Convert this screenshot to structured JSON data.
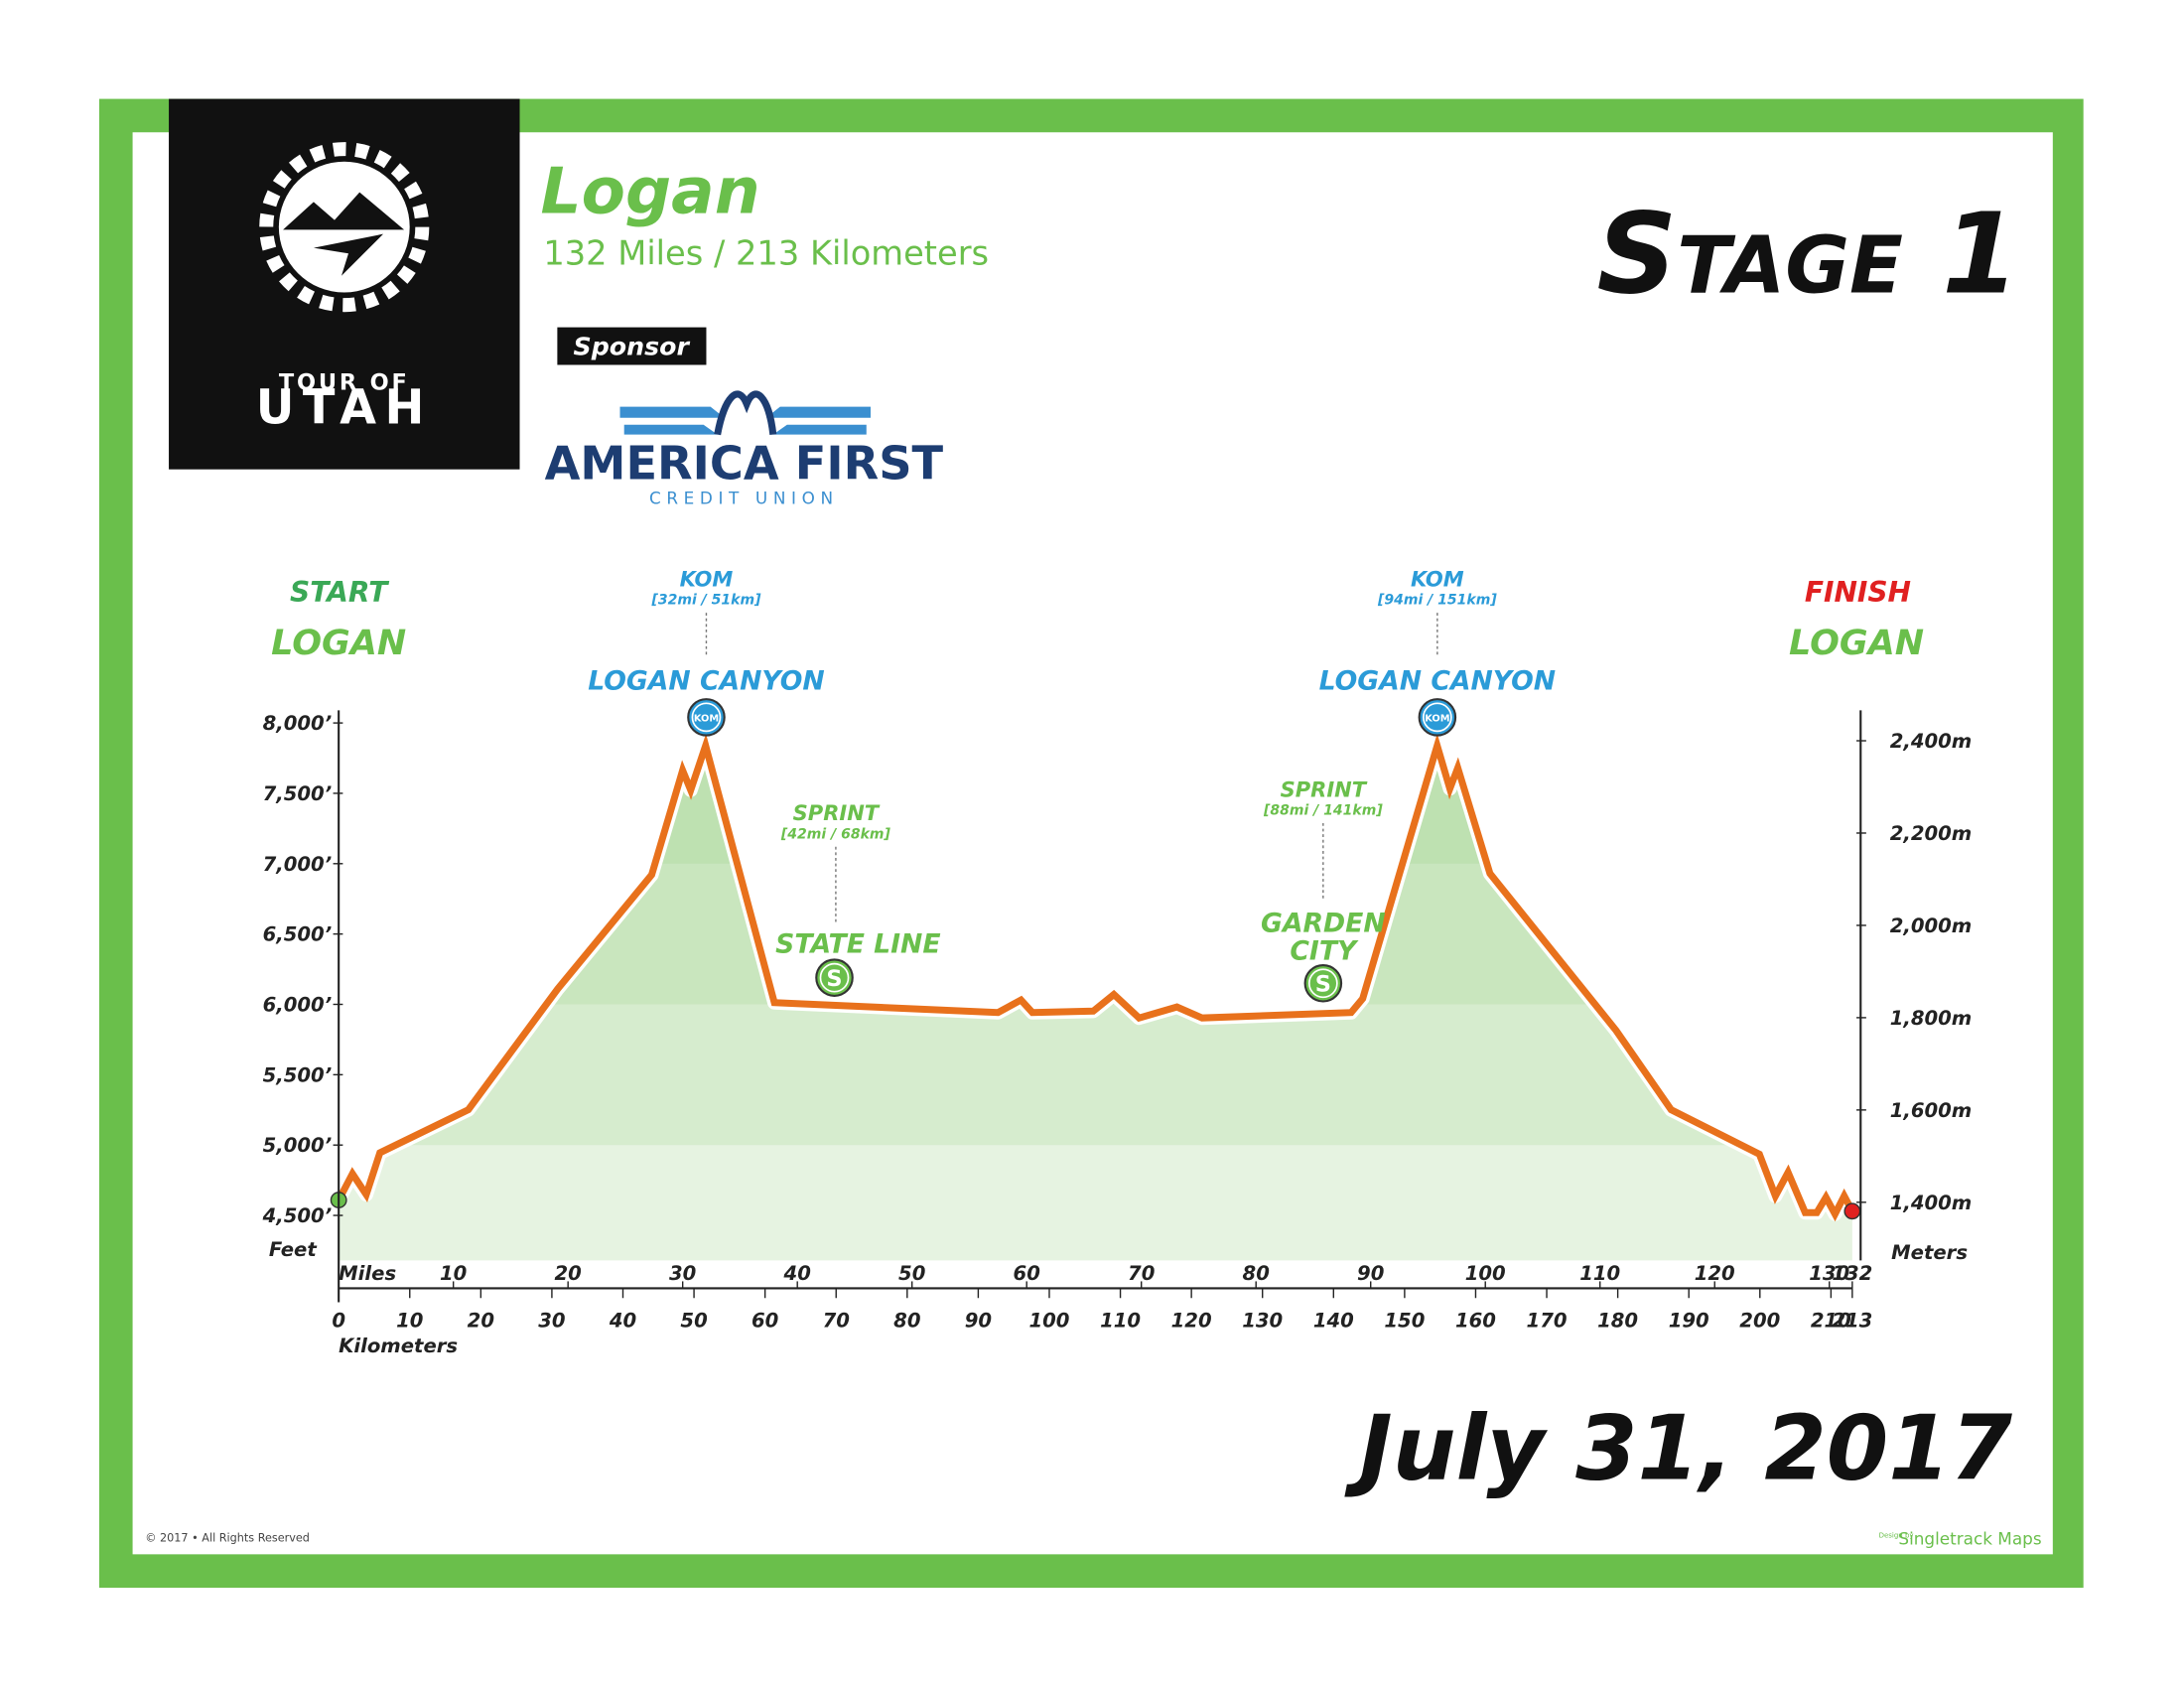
{
  "header": {
    "title": "Logan",
    "distance": "132 Miles / 213 Kilometers",
    "stage": "Stage 1",
    "date": "July 31, 2017"
  },
  "logo": {
    "line1": "TOUR OF",
    "line2": "UTAH"
  },
  "sponsor": {
    "label": "Sponsor",
    "name": "AMERICA FIRST",
    "subname": "CREDIT UNION"
  },
  "footer": {
    "copyright": "© 2017 • All Rights Reserved",
    "credit_prefix": "Design by",
    "credit": "Singletrack Maps"
  },
  "chart_data": {
    "type": "area",
    "start": {
      "label": "START",
      "place": "LOGAN"
    },
    "finish": {
      "label": "FINISH",
      "place": "LOGAN"
    },
    "xlabel": "Miles",
    "x2label": "Kilometers",
    "ylabel": "Feet",
    "y2label": "Meters",
    "x": [
      0,
      1.2,
      2.4,
      3.6,
      11.3,
      19.1,
      27.3,
      30.0,
      30.7,
      32.0,
      38.0,
      57.5,
      59.5,
      60.5,
      65.8,
      67.6,
      69.8,
      73.1,
      75.3,
      88.3,
      89.3,
      95.8,
      96.9,
      97.6,
      100.4,
      111.4,
      116.2,
      123.9,
      125.3,
      126.4,
      127.9,
      128.9,
      129.7,
      130.5,
      131.3,
      132
    ],
    "values": [
      4609,
      4796,
      4648,
      4945,
      5251,
      6110,
      6921,
      7662,
      7523,
      7839,
      6012,
      5942,
      6031,
      5942,
      5952,
      6071,
      5903,
      5982,
      5903,
      5942,
      6041,
      7839,
      7533,
      7681,
      6930,
      5814,
      5251,
      4935,
      4638,
      4806,
      4520,
      4520,
      4628,
      4510,
      4638,
      4530
    ],
    "color": "#e8711c",
    "fill": "#e6f3e1",
    "band_color": "#8fcf7c",
    "xlim": [
      0,
      132
    ],
    "xticks": [
      10,
      20,
      30,
      40,
      50,
      60,
      70,
      80,
      90,
      100,
      110,
      120,
      130,
      132
    ],
    "x2lim": [
      0,
      213
    ],
    "x2ticks": [
      0,
      10,
      20,
      30,
      40,
      50,
      60,
      70,
      80,
      90,
      100,
      110,
      120,
      130,
      140,
      150,
      160,
      170,
      180,
      190,
      200,
      210,
      213
    ],
    "ylim": [
      4180,
      8090
    ],
    "yticks": [
      {
        "value": 4500,
        "label": "4,500’"
      },
      {
        "value": 5000,
        "label": "5,000’"
      },
      {
        "value": 5500,
        "label": "5,500’"
      },
      {
        "value": 6000,
        "label": "6,000’"
      },
      {
        "value": 6500,
        "label": "6,500’"
      },
      {
        "value": 7000,
        "label": "7,000’"
      },
      {
        "value": 7500,
        "label": "7,500’"
      },
      {
        "value": 8000,
        "label": "8,000’"
      }
    ],
    "y2lim": [
      1274,
      2466
    ],
    "y2ticks": [
      {
        "value": 1400,
        "label": "1,400m"
      },
      {
        "value": 1600,
        "label": "1,600m"
      },
      {
        "value": 1800,
        "label": "1,800m"
      },
      {
        "value": 2000,
        "label": "2,000m"
      },
      {
        "value": 2200,
        "label": "2,200m"
      },
      {
        "value": 2400,
        "label": "2,400m"
      }
    ],
    "annotations": [
      {
        "category": "KOM",
        "detail": "[32mi / 51km]",
        "location": [
          "LOGAN CANYON"
        ],
        "icon": "KOM",
        "color": "#2b9bd8"
      },
      {
        "category": "SPRINT",
        "detail": "[42mi / 68km]",
        "location": [
          "STATE LINE"
        ],
        "icon": "S",
        "color": "#6abf4b"
      },
      {
        "category": "SPRINT",
        "detail": "[88mi / 141km]",
        "location": [
          "GARDEN",
          "CITY"
        ],
        "icon": "S",
        "color": "#6abf4b"
      },
      {
        "category": "KOM",
        "detail": "[94mi / 151km]",
        "location": [
          "LOGAN CANYON"
        ],
        "icon": "KOM",
        "color": "#2b9bd8"
      }
    ]
  }
}
